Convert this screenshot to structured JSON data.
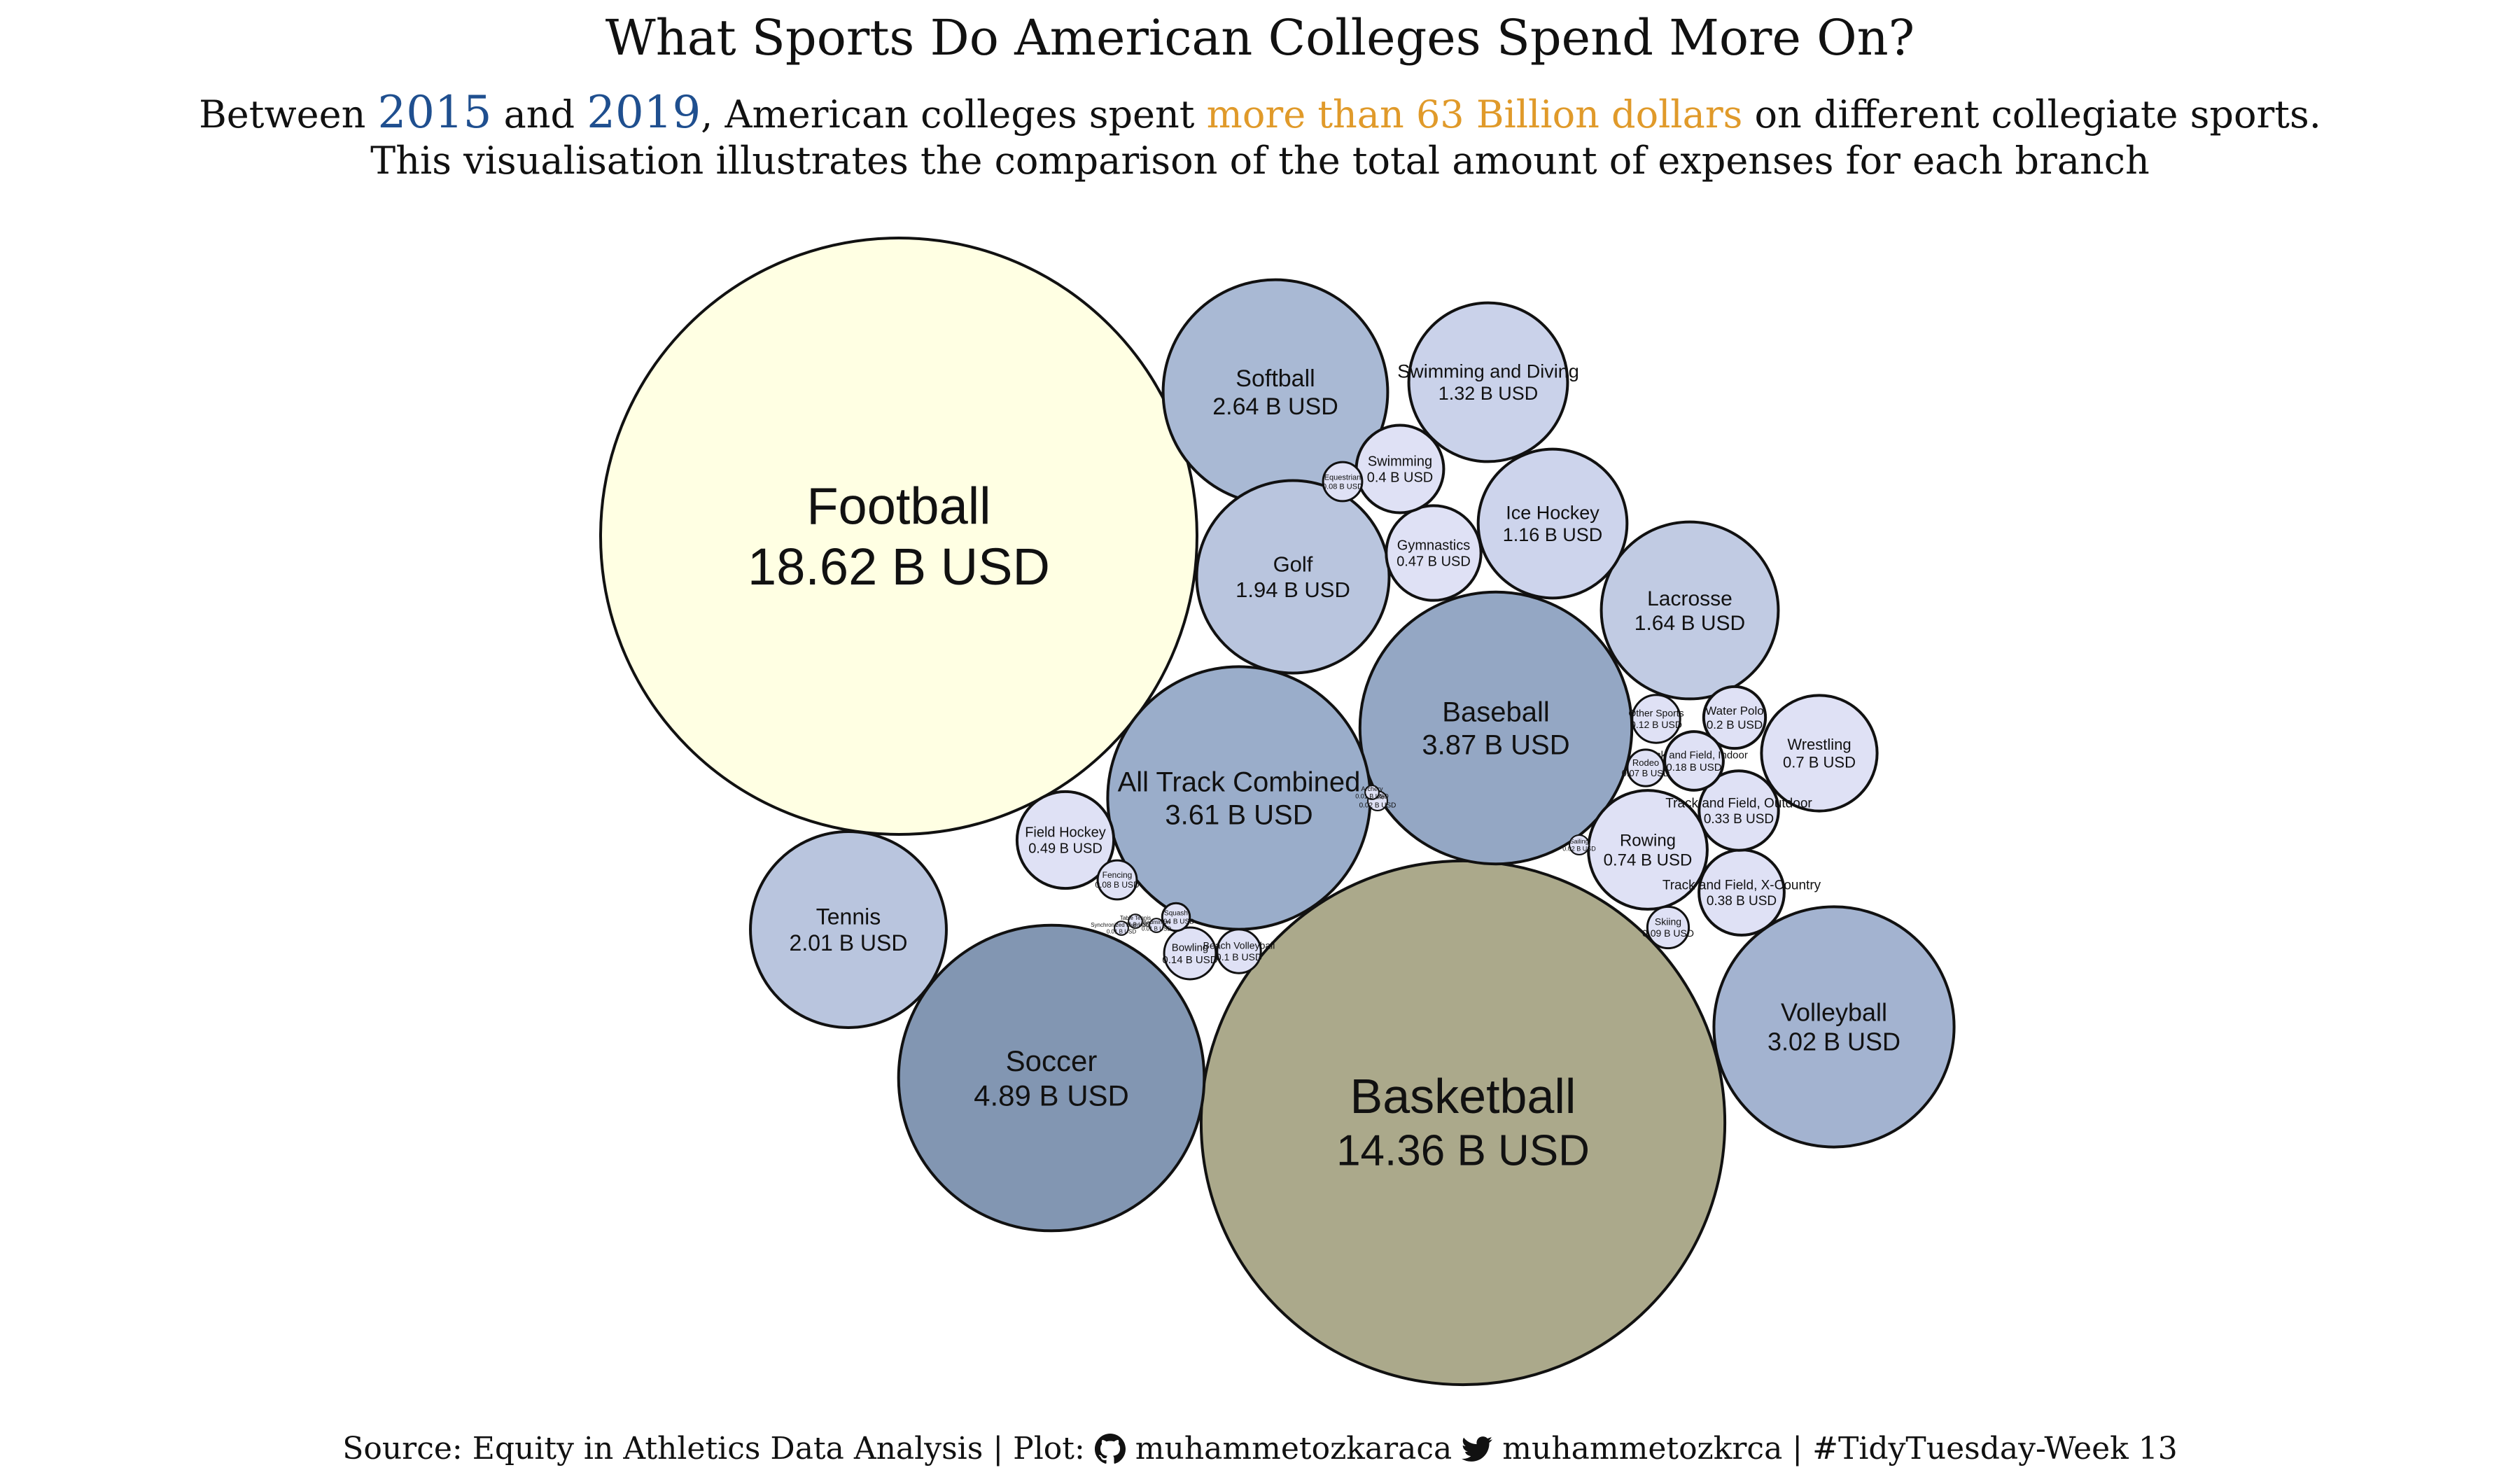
{
  "title": "What Sports Do American Colleges Spend More On?",
  "subtitle": {
    "part1": "Between ",
    "year1": "2015",
    "part2": " and ",
    "year2": "2019",
    "part3": ", American colleges spent ",
    "highlight": "more than 63 Billion dollars",
    "part4": " on different collegiate sports.",
    "line2": "This visualisation illustrates the comparison of the total amount of expenses for each branch"
  },
  "caption": {
    "source": "Source: Equity in Athletics Data Analysis | Plot: ",
    "github_handle": " muhammetozkaraca ",
    "twitter_handle": " muhammetozkrca | #TidyTuesday-Week 13",
    "github_icon": "github-icon",
    "twitter_icon": "twitter-icon"
  },
  "colors": {
    "year": "#1f4f8f",
    "highlight": "#e09a2a",
    "football": "#ffffe3",
    "basketball": "#aba98b",
    "soccer": "#8296b2",
    "baseball": "#94a7c4",
    "track": "#9aadca",
    "softball": "#a9b9d4",
    "volleyball": "#a3b3d0",
    "tennis": "#b9c5de",
    "golf": "#b9c5de",
    "lacrosse": "#c1cbe3",
    "swimming_diving": "#cad2ea",
    "ice_hockey": "#cdd4ec",
    "small": "#dfe1f5"
  },
  "chart_data": {
    "type": "bubble",
    "unit": "B USD",
    "items": [
      {
        "name": "Football",
        "value": 18.62,
        "label": "18.62 B USD"
      },
      {
        "name": "Basketball",
        "value": 14.36,
        "label": "14.36 B USD"
      },
      {
        "name": "Soccer",
        "value": 4.89,
        "label": "4.89 B USD"
      },
      {
        "name": "Baseball",
        "value": 3.87,
        "label": "3.87 B USD"
      },
      {
        "name": "All Track Combined",
        "value": 3.61,
        "label": "3.61 B USD"
      },
      {
        "name": "Volleyball",
        "value": 3.02,
        "label": "3.02 B USD"
      },
      {
        "name": "Softball",
        "value": 2.64,
        "label": "2.64 B USD"
      },
      {
        "name": "Tennis",
        "value": 2.01,
        "label": "2.01 B USD"
      },
      {
        "name": "Golf",
        "value": 1.94,
        "label": "1.94 B USD"
      },
      {
        "name": "Lacrosse",
        "value": 1.64,
        "label": "1.64 B USD"
      },
      {
        "name": "Swimming and Diving",
        "value": 1.32,
        "label": "1.32 B USD"
      },
      {
        "name": "Ice Hockey",
        "value": 1.16,
        "label": "1.16 B USD"
      },
      {
        "name": "Rowing",
        "value": 0.74,
        "label": "0.74 B USD"
      },
      {
        "name": "Wrestling",
        "value": 0.7,
        "label": "0.7 B USD"
      },
      {
        "name": "Field Hockey",
        "value": 0.49,
        "label": "0.49 B USD"
      },
      {
        "name": "Gymnastics",
        "value": 0.47,
        "label": "0.47 B USD"
      },
      {
        "name": "Swimming",
        "value": 0.4,
        "label": "0.4 B USD"
      },
      {
        "name": "Track and Field, X-Country",
        "value": 0.38,
        "label": "0.38 B USD"
      },
      {
        "name": "Track and Field, Outdoor",
        "value": 0.33,
        "label": "0.33 B USD"
      },
      {
        "name": "Water Polo",
        "value": 0.2,
        "label": "0.2 B USD"
      },
      {
        "name": "Track and Field, Indoor",
        "value": 0.18,
        "label": "0.18 B USD"
      },
      {
        "name": "Bowling",
        "value": 0.14,
        "label": "0.14 B USD"
      },
      {
        "name": "Other Sports",
        "value": 0.12,
        "label": "0.12 B USD"
      },
      {
        "name": "Beach Volleyball",
        "value": 0.1,
        "label": "0.1 B USD"
      },
      {
        "name": "Skiing",
        "value": 0.09,
        "label": "0.09 B USD"
      },
      {
        "name": "Equestrian",
        "value": 0.08,
        "label": "0.08 B USD"
      },
      {
        "name": "Fencing",
        "value": 0.08,
        "label": "0.08 B USD"
      },
      {
        "name": "Rodeo",
        "value": 0.07,
        "label": "0.07 B USD"
      },
      {
        "name": "Squash",
        "value": 0.04,
        "label": "0.04 B USD"
      },
      {
        "name": "Rifle",
        "value": 0.02,
        "label": "0.02 B USD"
      },
      {
        "name": "Sailing",
        "value": 0.02,
        "label": "0.02 B USD"
      },
      {
        "name": "Archery",
        "value": 0.01,
        "label": "0.01 B USD"
      },
      {
        "name": "Table Tennis",
        "value": 0.01,
        "label": "0.01 B USD"
      },
      {
        "name": "Synchronized Swimming",
        "value": 0.01,
        "label": "0.01 B USD"
      },
      {
        "name": "Badminton",
        "value": 0.01,
        "label": "0.01 B USD"
      }
    ]
  }
}
